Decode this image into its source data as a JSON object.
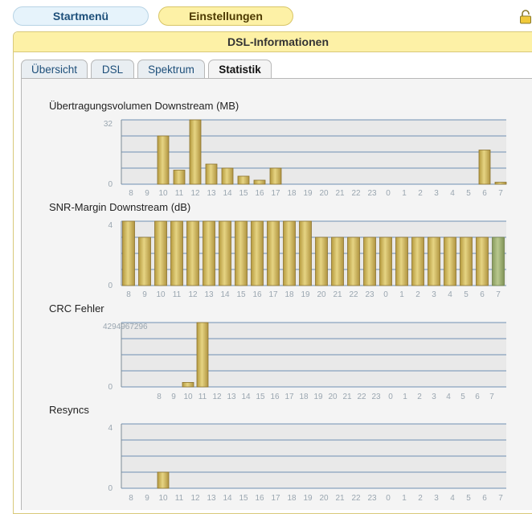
{
  "nav": {
    "start_label": "Startmenü",
    "settings_label": "Einstellungen"
  },
  "panel": {
    "title": "DSL-Informationen"
  },
  "tabs": [
    {
      "label": "Übersicht",
      "active": false
    },
    {
      "label": "DSL",
      "active": false
    },
    {
      "label": "Spektrum",
      "active": false
    },
    {
      "label": "Statistik",
      "active": true
    }
  ],
  "colors": {
    "bar": "#d6bd5a",
    "bar_highlight": "#9eb074",
    "plot_bg": "#e9e9e9",
    "grid": "#6f8fb2"
  },
  "icons": {
    "lock": "lock-icon"
  },
  "chart_data": [
    {
      "type": "bar",
      "title": "Übertragungsvolumen Downstream (MB)",
      "categories": [
        "8",
        "9",
        "10",
        "11",
        "12",
        "13",
        "14",
        "15",
        "16",
        "17",
        "18",
        "19",
        "20",
        "21",
        "22",
        "23",
        "0",
        "1",
        "2",
        "3",
        "4",
        "5",
        "6",
        "7"
      ],
      "values": [
        0,
        0,
        24,
        7,
        32,
        10,
        8,
        4,
        2,
        8,
        0,
        0,
        0,
        0,
        0,
        0,
        0,
        0,
        0,
        0,
        0,
        0,
        17,
        1
      ],
      "ylim": [
        0,
        32
      ],
      "yticks": [
        "0",
        "32"
      ]
    },
    {
      "type": "bar",
      "title": "SNR-Margin Downstream (dB)",
      "categories": [
        "8",
        "9",
        "10",
        "11",
        "12",
        "13",
        "14",
        "15",
        "16",
        "17",
        "18",
        "19",
        "20",
        "21",
        "22",
        "23",
        "0",
        "1",
        "2",
        "3",
        "4",
        "5",
        "6",
        "7"
      ],
      "values": [
        4,
        3,
        4,
        4,
        4,
        4,
        4,
        4,
        4,
        4,
        4,
        4,
        3,
        3,
        3,
        3,
        3,
        3,
        3,
        3,
        3,
        3,
        3,
        3
      ],
      "ylim": [
        0,
        4
      ],
      "yticks": [
        "0",
        "4"
      ],
      "highlight_last": true
    },
    {
      "type": "bar",
      "title": "CRC Fehler",
      "categories": [
        "",
        "",
        "8",
        "9",
        "10",
        "11",
        "12",
        "13",
        "14",
        "15",
        "16",
        "17",
        "18",
        "19",
        "20",
        "21",
        "22",
        "23",
        "0",
        "1",
        "2",
        "3",
        "4",
        "5",
        "6",
        "7"
      ],
      "values": [
        0,
        0,
        0,
        0,
        300000000,
        4294967296,
        0,
        0,
        0,
        0,
        0,
        0,
        0,
        0,
        0,
        0,
        0,
        0,
        0,
        0,
        0,
        0,
        0,
        0,
        0,
        0
      ],
      "ylim": [
        0,
        4294967296
      ],
      "yticks": [
        "0",
        "4294967296"
      ]
    },
    {
      "type": "bar",
      "title": "Resyncs",
      "categories": [
        "8",
        "9",
        "10",
        "11",
        "12",
        "13",
        "14",
        "15",
        "16",
        "17",
        "18",
        "19",
        "20",
        "21",
        "22",
        "23",
        "0",
        "1",
        "2",
        "3",
        "4",
        "5",
        "6",
        "7"
      ],
      "values": [
        0,
        0,
        1,
        0,
        0,
        0,
        0,
        0,
        0,
        0,
        0,
        0,
        0,
        0,
        0,
        0,
        0,
        0,
        0,
        0,
        0,
        0,
        0,
        0
      ],
      "ylim": [
        0,
        4
      ],
      "yticks": [
        "0",
        "4"
      ]
    }
  ]
}
